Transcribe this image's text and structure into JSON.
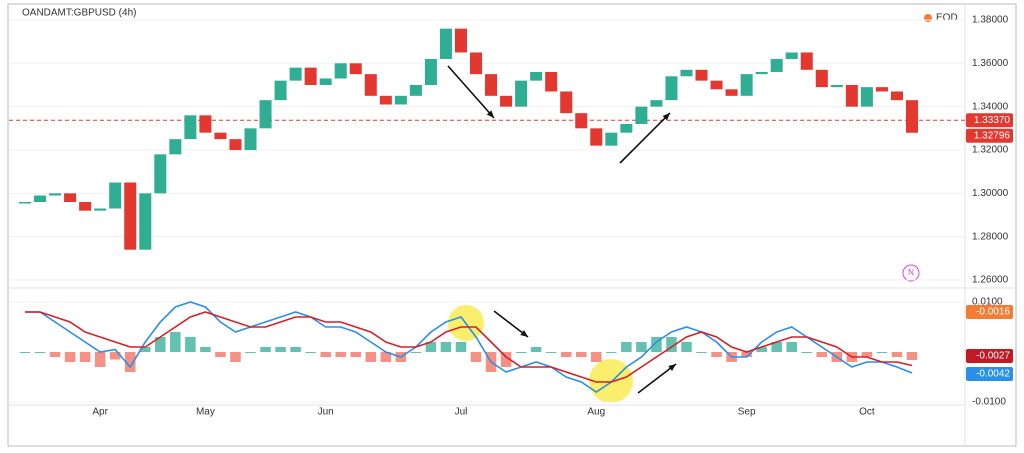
{
  "chart_data": [
    {
      "type": "candlestick",
      "title": "OANDAMT:GBPUSD (4h)",
      "legend": "EOD",
      "legend_color": "#f57c34",
      "up_color": "#2fae94",
      "down_color": "#e2382f",
      "values": [
        1.296,
        1.299,
        1.3,
        1.296,
        1.292,
        1.293,
        1.305,
        1.274,
        1.3,
        1.318,
        1.325,
        1.336,
        1.328,
        1.325,
        1.32,
        1.33,
        1.343,
        1.352,
        1.358,
        1.35,
        1.353,
        1.36,
        1.355,
        1.345,
        1.341,
        1.345,
        1.35,
        1.362,
        1.376,
        1.365,
        1.355,
        1.345,
        1.34,
        1.352,
        1.356,
        1.347,
        1.337,
        1.33,
        1.322,
        1.328,
        1.332,
        1.34,
        1.343,
        1.354,
        1.357,
        1.352,
        1.348,
        1.345,
        1.355,
        1.356,
        1.362,
        1.365,
        1.357,
        1.349,
        1.35,
        1.34,
        1.349,
        1.347,
        1.343,
        1.32796
      ],
      "ylim": [
        1.2577,
        1.3846
      ],
      "yticks": [
        {
          "value": 1.26,
          "label": "1.26000"
        },
        {
          "value": 1.28,
          "label": "1.28000"
        },
        {
          "value": 1.3,
          "label": "1.30000"
        },
        {
          "value": 1.32,
          "label": "1.32000"
        },
        {
          "value": 1.34,
          "label": "1.34000"
        },
        {
          "value": 1.36,
          "label": "1.36000"
        },
        {
          "value": 1.38,
          "label": "1.38000"
        }
      ],
      "reference_line": {
        "value": 1.3337,
        "label": "1.33370",
        "color": "#e2382f"
      },
      "last_value": {
        "value": 1.32796,
        "label": "1.32796",
        "color": "#e2382f"
      }
    },
    {
      "type": "line",
      "categories": [
        null,
        null,
        null,
        null,
        null,
        "Apr",
        null,
        null,
        null,
        null,
        null,
        null,
        "May",
        null,
        null,
        null,
        null,
        null,
        null,
        null,
        "Jun",
        null,
        null,
        null,
        null,
        null,
        null,
        null,
        null,
        "Jul",
        null,
        null,
        null,
        null,
        null,
        null,
        null,
        null,
        "Aug",
        null,
        null,
        null,
        null,
        null,
        null,
        null,
        null,
        null,
        "Sep",
        null,
        null,
        null,
        null,
        null,
        null,
        null,
        "Oct",
        null,
        null,
        null
      ],
      "ylim": [
        -0.0106,
        0.0124
      ],
      "yticks": [
        {
          "value": 0.01,
          "label": "0.0100"
        },
        {
          "value": -0.01,
          "label": "-0.0100"
        }
      ],
      "series": [
        {
          "type": "bar",
          "color": "#2fae94",
          "negative_color": "#f26b5b",
          "last_value": {
            "value": -0.0016,
            "label": "-0.0016",
            "color": "#f57c34"
          },
          "values": [
            0,
            0,
            -0.001,
            -0.002,
            -0.002,
            -0.003,
            -0.0015,
            -0.004,
            0.001,
            0.003,
            0.004,
            0.003,
            0.001,
            -0.001,
            -0.002,
            0,
            0.001,
            0.001,
            0.001,
            0,
            -0.001,
            -0.001,
            -0.001,
            -0.002,
            -0.002,
            -0.002,
            0,
            0.002,
            0.002,
            0.002,
            -0.002,
            -0.004,
            -0.003,
            0,
            0.001,
            0,
            -0.001,
            -0.001,
            -0.002,
            0,
            0.002,
            0.002,
            0.003,
            0.003,
            0.002,
            0,
            -0.001,
            -0.002,
            -0.001,
            0.001,
            0.002,
            0.002,
            0,
            -0.001,
            -0.002,
            -0.002,
            -0.001,
            0,
            -0.001,
            -0.0016
          ]
        },
        {
          "type": "line",
          "color": "#2a8fe8",
          "last_value": {
            "value": -0.0042,
            "label": "-0.0042",
            "color": "#2a8fe8"
          },
          "values": [
            0.008,
            0.008,
            0.006,
            0.004,
            0.002,
            0,
            0.0005,
            -0.003,
            0.002,
            0.006,
            0.009,
            0.01,
            0.009,
            0.006,
            0.004,
            0.005,
            0.006,
            0.007,
            0.008,
            0.007,
            0.005,
            0.005,
            0.004,
            0.002,
            0,
            -0.001,
            0.001,
            0.004,
            0.006,
            0.007,
            0.003,
            -0.002,
            -0.004,
            -0.003,
            -0.002,
            -0.003,
            -0.005,
            -0.006,
            -0.008,
            -0.006,
            -0.003,
            -0.001,
            0.002,
            0.004,
            0.005,
            0.004,
            0.002,
            -0.001,
            -0.001,
            0.002,
            0.004,
            0.005,
            0.003,
            0.001,
            -0.001,
            -0.003,
            -0.002,
            -0.002,
            -0.003,
            -0.0042
          ]
        },
        {
          "type": "line",
          "color": "#d4202a",
          "last_value": {
            "value": -0.0027,
            "label": "-0.0027",
            "color": "#c21a24"
          },
          "values": [
            0.008,
            0.008,
            0.007,
            0.006,
            0.004,
            0.003,
            0.002,
            0.001,
            0.001,
            0.003,
            0.005,
            0.007,
            0.008,
            0.007,
            0.006,
            0.005,
            0.005,
            0.006,
            0.007,
            0.007,
            0.006,
            0.006,
            0.005,
            0.004,
            0.002,
            0.001,
            0.001,
            0.002,
            0.004,
            0.005,
            0.005,
            0.002,
            -0.001,
            -0.003,
            -0.003,
            -0.003,
            -0.004,
            -0.005,
            -0.006,
            -0.006,
            -0.005,
            -0.003,
            -0.001,
            0.001,
            0.003,
            0.004,
            0.003,
            0.001,
            0,
            0.001,
            0.002,
            0.003,
            0.003,
            0.002,
            0.001,
            -0.001,
            -0.001,
            -0.002,
            -0.002,
            -0.0027
          ]
        }
      ]
    }
  ]
}
